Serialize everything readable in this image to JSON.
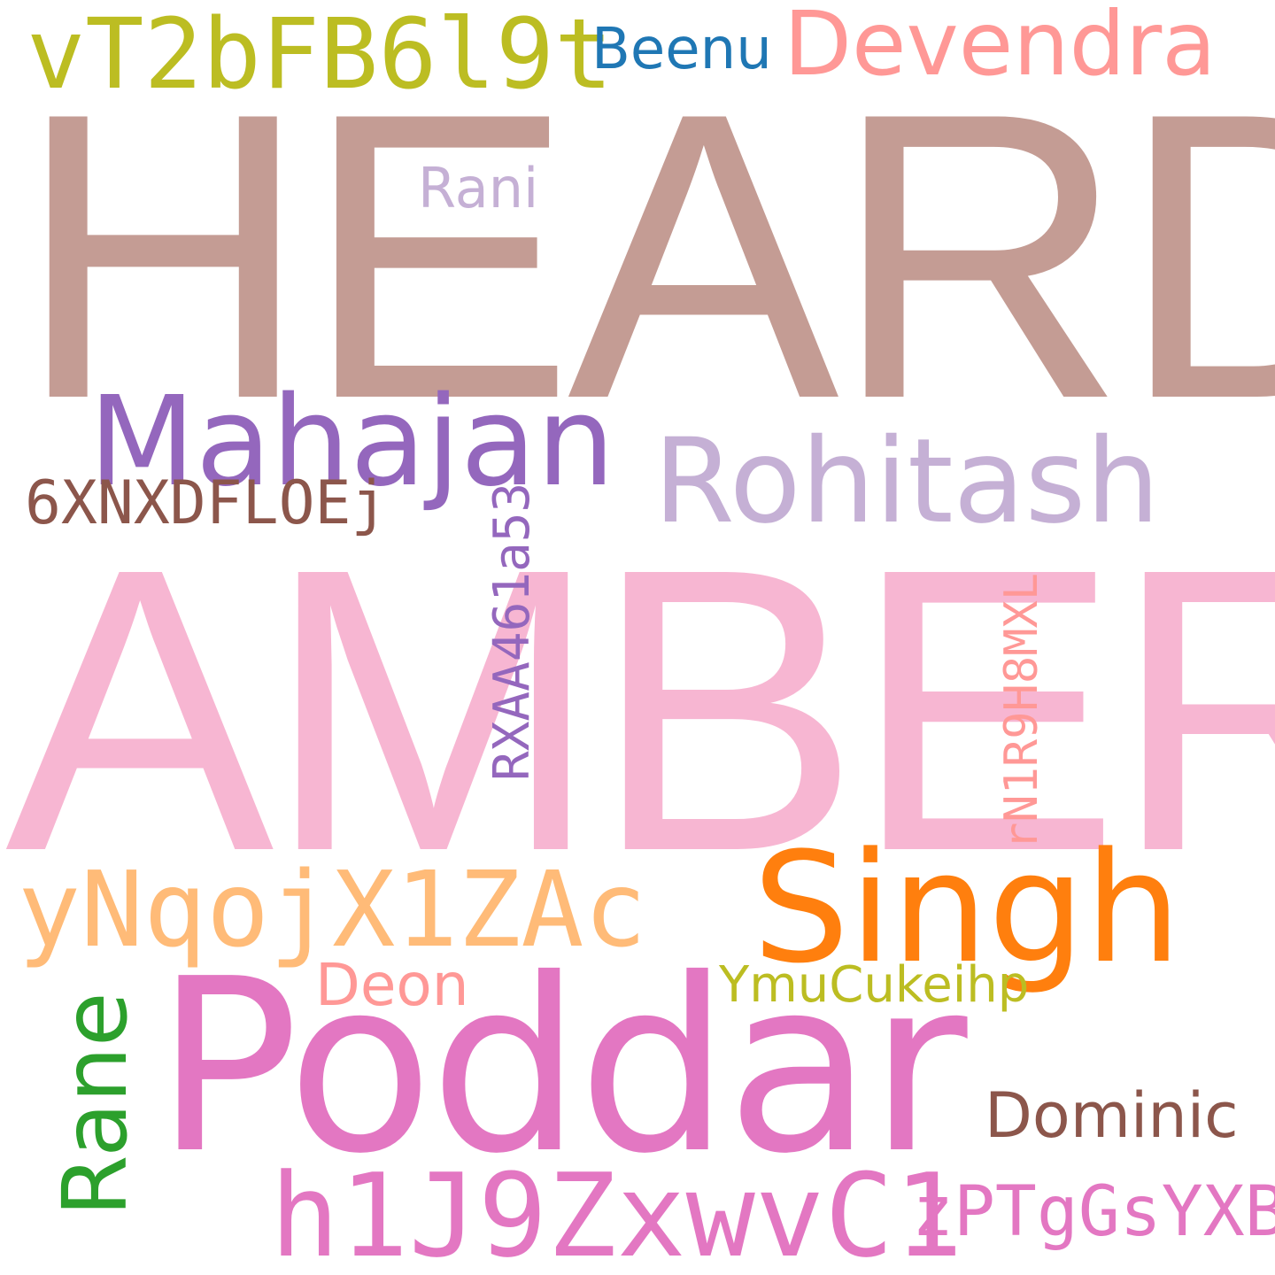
{
  "words": [
    {
      "id": "heard",
      "text": "HEARD",
      "color": "#c49c94"
    },
    {
      "id": "amber",
      "text": "AMBER",
      "color": "#f7b6d2"
    },
    {
      "id": "poddar",
      "text": "Poddar",
      "color": "#e377c2"
    },
    {
      "id": "singh",
      "text": "Singh",
      "color": "#ff7f0e"
    },
    {
      "id": "rohitash",
      "text": "Rohitash",
      "color": "#c5b0d5"
    },
    {
      "id": "mahajan",
      "text": "Mahajan",
      "color": "#9467bd"
    },
    {
      "id": "devendra",
      "text": "Devendra",
      "color": "#ff9896"
    },
    {
      "id": "vt2bfb6l9t",
      "text": "vT2bFB6l9t",
      "color": "#bcbd22"
    },
    {
      "id": "beenu",
      "text": "Beenu",
      "color": "#1f77b4"
    },
    {
      "id": "rani",
      "text": "Rani",
      "color": "#c5b0d5"
    },
    {
      "id": "6xnxdfloej",
      "text": "6XNXDFLOEj",
      "color": "#8c564b"
    },
    {
      "id": "rxaa461a53",
      "text": "RXAA461a53",
      "color": "#9467bd"
    },
    {
      "id": "rn1r9h8mxl",
      "text": "rN1R9H8MXL",
      "color": "#ff9896"
    },
    {
      "id": "ynqojx1zac",
      "text": "yNqojX1ZAc",
      "color": "#ffbb78"
    },
    {
      "id": "deon",
      "text": "Deon",
      "color": "#ff9896"
    },
    {
      "id": "ymucukeihp",
      "text": "YmuCukeihp",
      "color": "#bcbd22"
    },
    {
      "id": "rane",
      "text": "Rane",
      "color": "#2ca02c"
    },
    {
      "id": "dominic",
      "text": "Dominic",
      "color": "#8c564b"
    },
    {
      "id": "h1j9zxwvc1",
      "text": "h1J9ZxwvC1",
      "color": "#e377c2"
    },
    {
      "id": "zptggsyxbf",
      "text": "zPTgGsYXBf",
      "color": "#e377c2"
    }
  ]
}
